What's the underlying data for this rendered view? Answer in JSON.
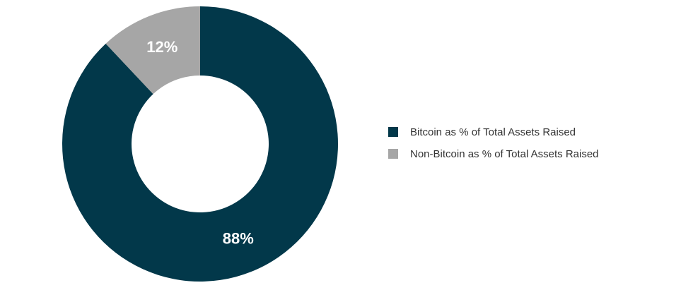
{
  "chart_data": {
    "type": "donut",
    "categories": [
      "Bitcoin as % of Total Assets Raised",
      "Non-Bitcoin as % of Total Assets Raised"
    ],
    "values": [
      88,
      12
    ],
    "value_labels": [
      "88%",
      "12%"
    ],
    "colors": [
      "#02384a",
      "#a6a6a6"
    ],
    "legend": "right"
  }
}
